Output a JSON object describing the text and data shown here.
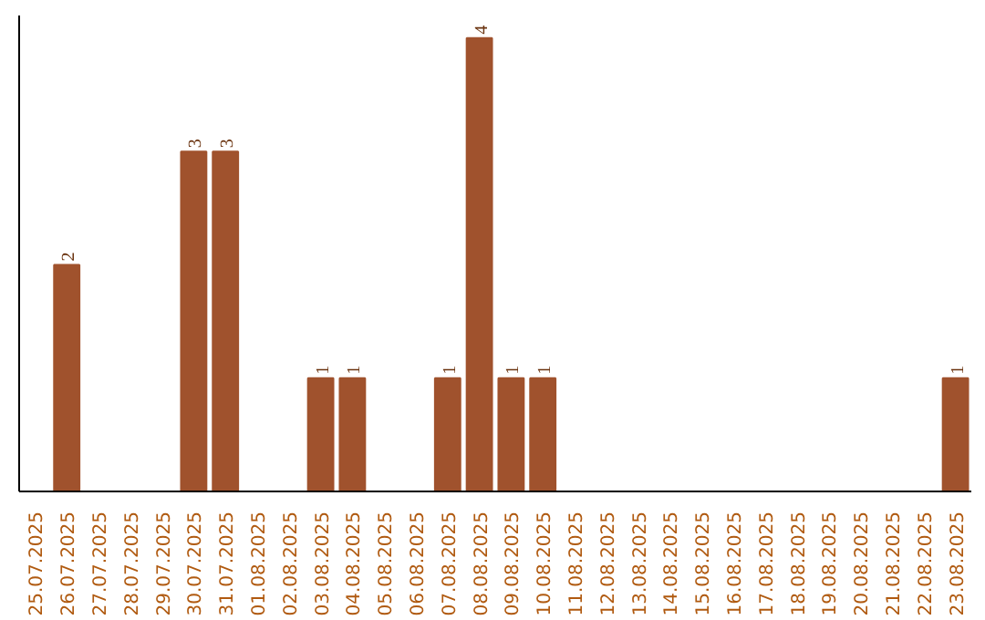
{
  "chart_data": {
    "type": "bar",
    "categories": [
      "25.07.2025",
      "26.07.2025",
      "27.07.2025",
      "28.07.2025",
      "29.07.2025",
      "30.07.2025",
      "31.07.2025",
      "01.08.2025",
      "02.08.2025",
      "03.08.2025",
      "04.08.2025",
      "05.08.2025",
      "06.08.2025",
      "07.08.2025",
      "08.08.2025",
      "09.08.2025",
      "10.08.2025",
      "11.08.2025",
      "12.08.2025",
      "13.08.2025",
      "14.08.2025",
      "15.08.2025",
      "16.08.2025",
      "17.08.2025",
      "18.08.2025",
      "19.08.2025",
      "20.08.2025",
      "21.08.2025",
      "22.08.2025",
      "23.08.2025"
    ],
    "values": [
      0,
      2,
      0,
      0,
      0,
      3,
      3,
      0,
      0,
      1,
      1,
      0,
      0,
      1,
      4,
      1,
      1,
      0,
      0,
      0,
      0,
      0,
      0,
      0,
      0,
      0,
      0,
      0,
      0,
      1
    ],
    "value_labels": [
      null,
      "2",
      null,
      null,
      null,
      "3",
      "3",
      null,
      null,
      "1",
      "1",
      null,
      null,
      "1",
      "4",
      "1",
      "1",
      null,
      null,
      null,
      null,
      null,
      null,
      null,
      null,
      null,
      null,
      null,
      null,
      "1"
    ],
    "color": "#a0522d",
    "ylim": [
      0,
      4.2
    ]
  }
}
